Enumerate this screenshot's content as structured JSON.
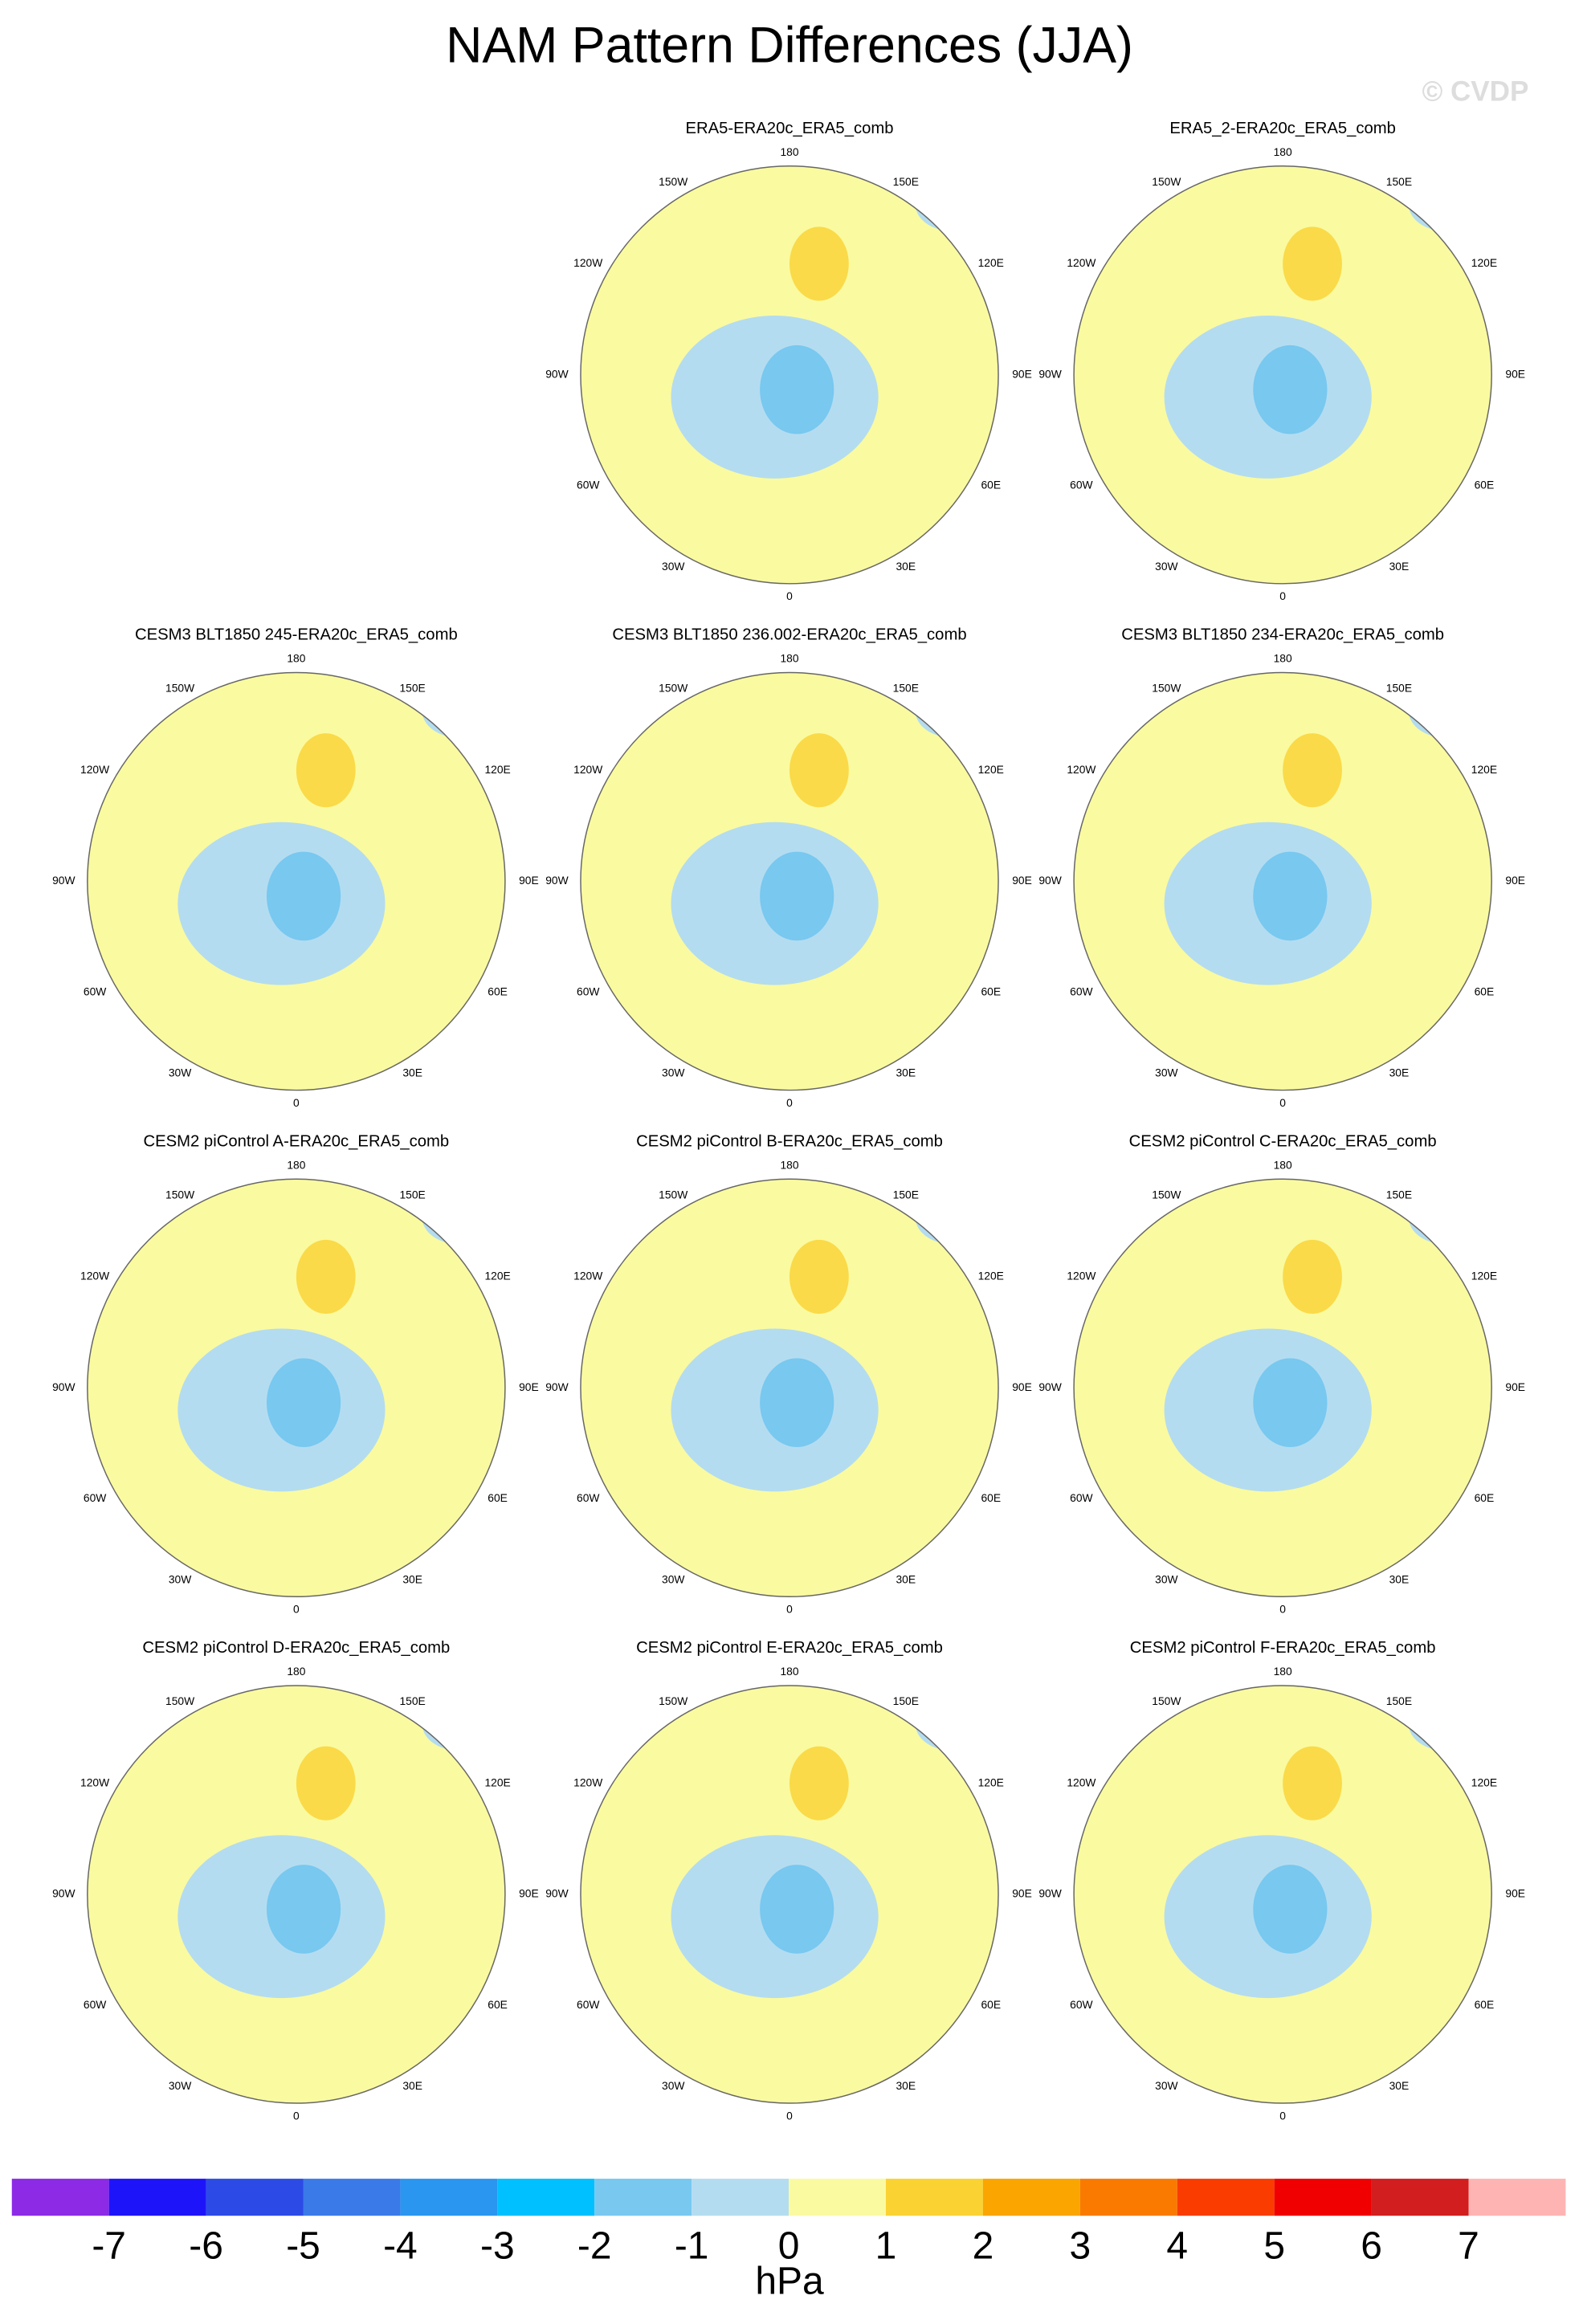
{
  "title": "NAM Pattern Differences (JJA)",
  "watermark": "© CVDP",
  "panels": [
    {
      "title": "ERA5-ERA20c_ERA5_comb"
    },
    {
      "title": "ERA5_2-ERA20c_ERA5_comb"
    },
    {
      "title": "CESM3 BLT1850 245-ERA20c_ERA5_comb"
    },
    {
      "title": "CESM3 BLT1850 236.002-ERA20c_ERA5_comb"
    },
    {
      "title": "CESM3 BLT1850 234-ERA20c_ERA5_comb"
    },
    {
      "title": "CESM2 piControl A-ERA20c_ERA5_comb"
    },
    {
      "title": "CESM2 piControl B-ERA20c_ERA5_comb"
    },
    {
      "title": "CESM2 piControl C-ERA20c_ERA5_comb"
    },
    {
      "title": "CESM2 piControl D-ERA20c_ERA5_comb"
    },
    {
      "title": "CESM2 piControl E-ERA20c_ERA5_comb"
    },
    {
      "title": "CESM2 piControl F-ERA20c_ERA5_comb"
    }
  ],
  "longitude_labels": [
    "180",
    "150E",
    "120E",
    "90E",
    "60E",
    "30E",
    "0",
    "30W",
    "60W",
    "90W",
    "120W",
    "150W"
  ],
  "colorbar": {
    "label": "hPa",
    "colors": [
      "#8c2ae6",
      "#1e14fa",
      "#2c4be6",
      "#3a7ae8",
      "#2a96f0",
      "#00c0ff",
      "#78c8f0",
      "#b4dcf0",
      "#fafaa0",
      "#fad232",
      "#faa500",
      "#fa7a00",
      "#fa3c00",
      "#f00000",
      "#d21e1e",
      "#ffb4b4"
    ],
    "ticks": [
      -7,
      -6,
      -5,
      -4,
      -3,
      -2,
      -1,
      0,
      1,
      2,
      3,
      4,
      5,
      6,
      7
    ]
  }
}
